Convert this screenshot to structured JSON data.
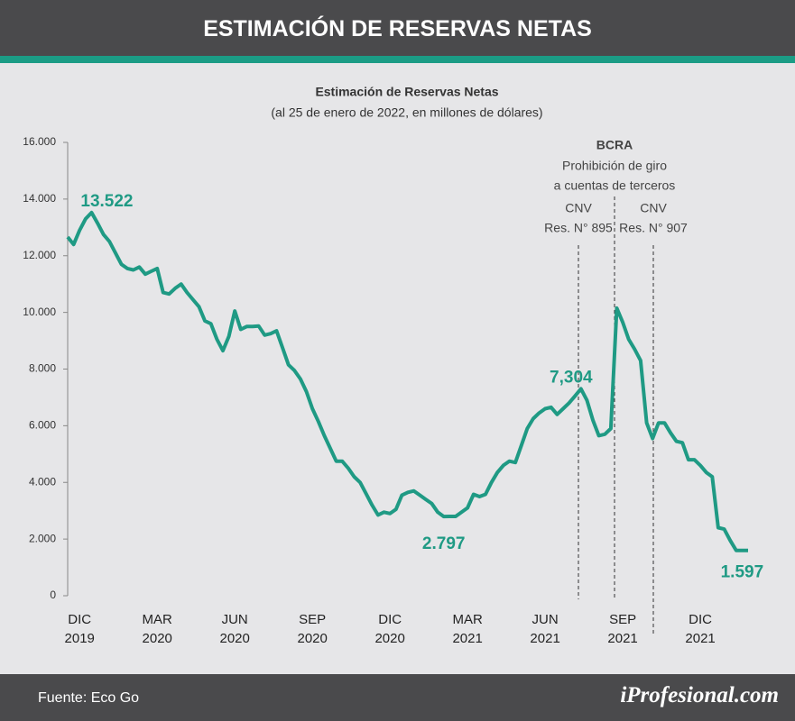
{
  "header": {
    "title": "ESTIMACIÓN DE RESERVAS NETAS"
  },
  "chart_data": {
    "type": "line",
    "title": "Estimación de Reservas Netas",
    "subtitle": "(al 25 de enero de 2022, en millones de dólares)",
    "categories": [
      null,
      null,
      "DIC 2019",
      null,
      null,
      null,
      null,
      null,
      null,
      null,
      null,
      null,
      null,
      null,
      null,
      "MAR 2020",
      null,
      null,
      null,
      null,
      null,
      null,
      null,
      null,
      null,
      null,
      null,
      null,
      "JUN 2020",
      null,
      null,
      null,
      null,
      null,
      null,
      null,
      null,
      null,
      null,
      null,
      null,
      "SEP 2020",
      null,
      null,
      null,
      null,
      null,
      null,
      null,
      null,
      null,
      null,
      null,
      null,
      "DIC 2020",
      null,
      null,
      null,
      null,
      null,
      null,
      null,
      null,
      null,
      null,
      null,
      null,
      "MAR 2021",
      null,
      null,
      null,
      null,
      null,
      null,
      null,
      null,
      null,
      null,
      null,
      null,
      "JUN 2021",
      null,
      null,
      null,
      null,
      null,
      null,
      null,
      null,
      null,
      null,
      null,
      null,
      "SEP 2021",
      null,
      null,
      null,
      null,
      null,
      null,
      null,
      null,
      null,
      null,
      null,
      null,
      "DIC 2021",
      null,
      null,
      null,
      null,
      null,
      null,
      null,
      null
    ],
    "series": [
      {
        "color": "#1f9a84",
        "values": [
          12660,
          12400,
          12900,
          13300,
          13522,
          13150,
          12750,
          12500,
          12100,
          11700,
          11550,
          11500,
          11600,
          11350,
          11450,
          11550,
          10700,
          10650,
          10850,
          11000,
          10700,
          10450,
          10200,
          9700,
          9600,
          9050,
          8650,
          9150,
          10050,
          9400,
          9500,
          9500,
          9520,
          9200,
          9250,
          9350,
          8750,
          8150,
          7950,
          7650,
          7200,
          6600,
          6150,
          5650,
          5200,
          4750,
          4750,
          4500,
          4200,
          4000,
          3600,
          3200,
          2850,
          2950,
          2900,
          3050,
          3550,
          3650,
          3700,
          3550,
          3400,
          3250,
          2950,
          2797,
          2800,
          2800,
          2950,
          3100,
          3580,
          3500,
          3580,
          4000,
          4350,
          4600,
          4750,
          4700,
          5300,
          5900,
          6250,
          6450,
          6600,
          6650,
          6400,
          6600,
          6800,
          7050,
          7304,
          6900,
          6200,
          5650,
          5700,
          5900,
          10150,
          9650,
          9050,
          8700,
          8300,
          6100,
          5550,
          6100,
          6100,
          5750,
          5450,
          5400,
          4800,
          4800,
          4600,
          4350,
          4200,
          2400,
          2350,
          1950,
          1600,
          1600,
          1597
        ],
        "value_labels": [
          null,
          null,
          null,
          null,
          "13.522",
          null,
          null,
          null,
          null,
          null,
          null,
          null,
          null,
          null,
          null,
          null,
          null,
          null,
          null,
          null,
          null,
          null,
          null,
          null,
          null,
          null,
          null,
          null,
          null,
          null,
          null,
          null,
          null,
          null,
          null,
          null,
          null,
          null,
          null,
          null,
          null,
          null,
          null,
          null,
          null,
          null,
          null,
          null,
          null,
          null,
          null,
          null,
          null,
          null,
          null,
          null,
          null,
          null,
          null,
          null,
          null,
          null,
          null,
          "2.797",
          null,
          null,
          null,
          null,
          null,
          null,
          null,
          null,
          null,
          null,
          null,
          null,
          null,
          null,
          null,
          null,
          null,
          null,
          null,
          null,
          null,
          null,
          "7,304",
          null,
          null,
          null,
          null,
          null,
          null,
          null,
          null,
          null,
          null,
          null,
          null,
          null,
          null,
          null,
          null,
          null,
          null,
          null,
          null,
          null,
          null,
          null,
          null,
          null,
          null,
          "1.597"
        ]
      }
    ],
    "ylim": [
      0,
      16000
    ],
    "yticks": [
      0,
      {
        "value": 2000,
        "label": "2.000"
      },
      {
        "value": 4000,
        "label": "4.000"
      },
      {
        "value": 6000,
        "label": "6.000"
      },
      {
        "value": 8000,
        "label": "8.000"
      },
      {
        "value": 10000,
        "label": "10.000"
      },
      {
        "value": 12000,
        "label": "12.000"
      },
      {
        "value": 14000,
        "label": "14.000"
      },
      {
        "value": 16000,
        "label": "16.000"
      }
    ],
    "grid": false,
    "annotations": [
      {
        "lines": [
          "CNV",
          "Res. N° 895"
        ]
      },
      {
        "lines": [
          "BCRA",
          "Prohibición de giro",
          "a cuentas de terceros"
        ]
      },
      {
        "lines": [
          "CNV",
          "Res. N° 907"
        ]
      }
    ]
  },
  "footer": {
    "source": "Fuente: Eco Go",
    "logo": "iProfesional.com"
  }
}
